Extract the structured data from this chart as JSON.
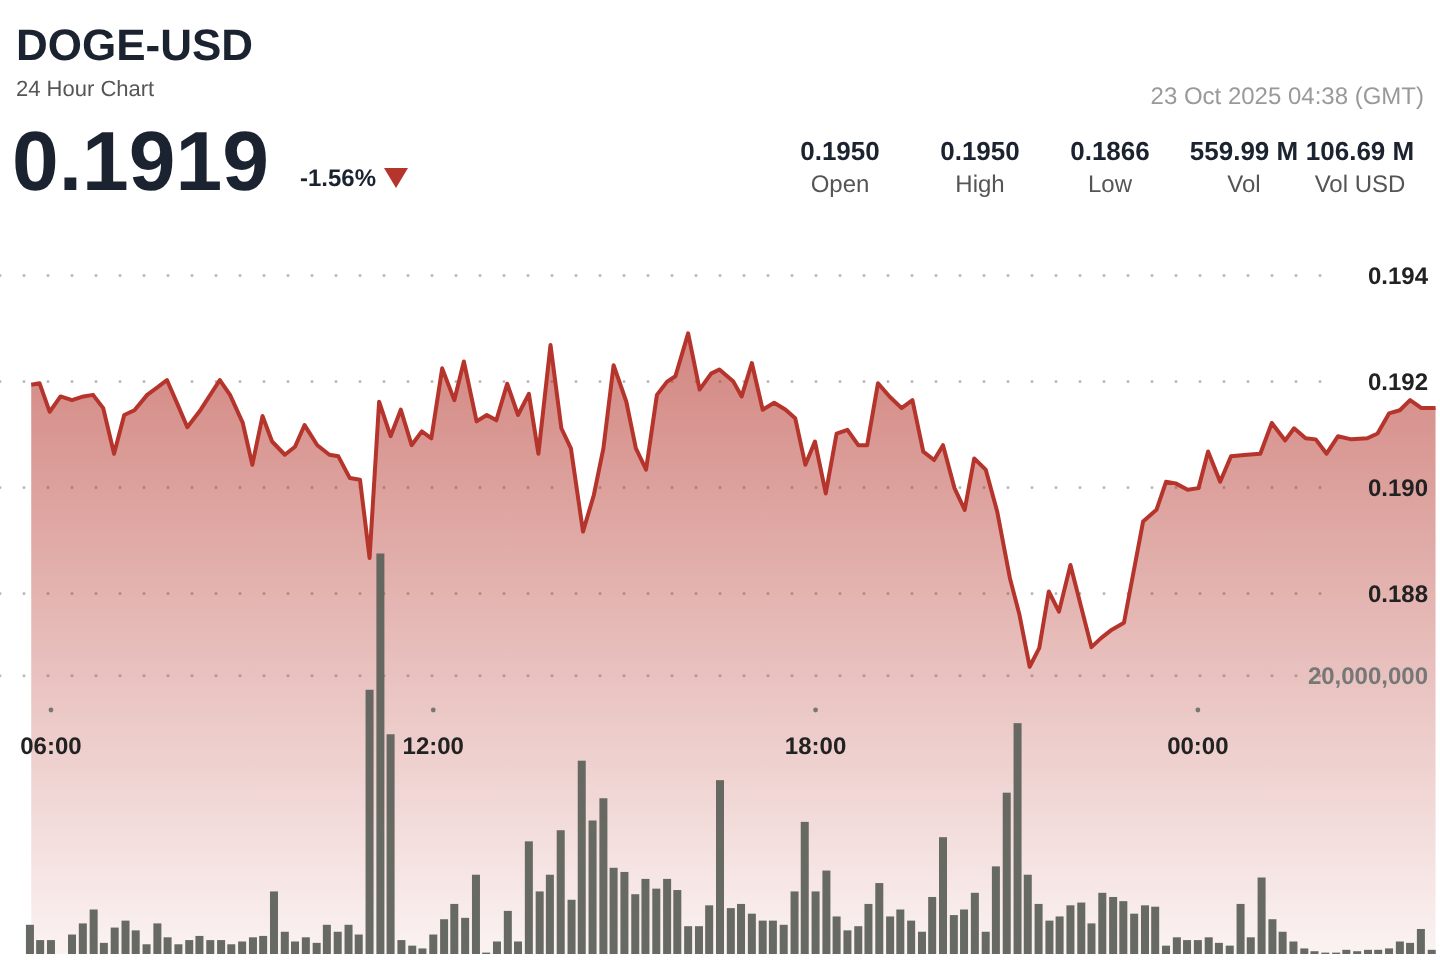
{
  "chart_data": {
    "type": "area",
    "title": "DOGE-USD",
    "subtitle": "24 Hour Chart",
    "annotations": [
      "0.1919",
      "-1.56%",
      "23 Oct 2025 04:38 (GMT)",
      "0.1950",
      "Open",
      "0.1950",
      "High",
      "0.1866",
      "Low",
      "559.99 M",
      "Vol",
      "106.69 M",
      "Vol USD"
    ],
    "xlim": [
      5.2,
      27.8
    ],
    "xticks": [
      {
        "value": 6,
        "label": "06:00"
      },
      {
        "value": 12,
        "label": "12:00"
      },
      {
        "value": 18,
        "label": "18:00"
      },
      {
        "value": 24,
        "label": "00:00"
      }
    ],
    "ylim": [
      0.1812,
      0.1992
    ],
    "yticks": [
      {
        "value": 0.188,
        "label": "0.188"
      },
      {
        "value": 0.19,
        "label": "0.190"
      },
      {
        "value": 0.192,
        "label": "0.192"
      },
      {
        "value": 0.194,
        "label": "0.194"
      }
    ],
    "y2lim": [
      0,
      68600000
    ],
    "y2ticks": [
      {
        "value": 20000000,
        "label": "20,000,000"
      }
    ],
    "grid": "y",
    "series": [
      {
        "color": "#b5352c",
        "x": [
          5.69,
          5.82,
          5.98,
          6.15,
          6.33,
          6.51,
          6.66,
          6.82,
          6.99,
          7.15,
          7.31,
          7.51,
          7.68,
          7.82,
          7.99,
          8.14,
          8.35,
          8.65,
          8.81,
          9.01,
          9.16,
          9.32,
          9.47,
          9.67,
          9.83,
          9.98,
          10.18,
          10.37,
          10.51,
          10.69,
          10.85,
          11.0,
          11.15,
          11.33,
          11.49,
          11.66,
          11.82,
          11.97,
          12.14,
          12.33,
          12.48,
          12.68,
          12.84,
          12.99,
          13.16,
          13.33,
          13.5,
          13.65,
          13.84,
          14.01,
          14.16,
          14.35,
          14.52,
          14.67,
          14.83,
          15.03,
          15.18,
          15.34,
          15.51,
          15.67,
          15.8,
          16.0,
          16.18,
          16.36,
          16.49,
          16.71,
          16.84,
          17.0,
          17.17,
          17.35,
          17.53,
          17.68,
          17.84,
          17.99,
          18.16,
          18.33,
          18.5,
          18.67,
          18.81,
          18.98,
          19.16,
          19.35,
          19.52,
          19.69,
          19.86,
          20.0,
          20.18,
          20.34,
          20.49,
          20.67,
          20.85,
          21.05,
          21.2,
          21.36,
          21.51,
          21.66,
          21.82,
          22.0,
          22.33,
          22.48,
          22.65,
          22.84,
          23.14,
          23.35,
          23.5,
          23.65,
          23.84,
          24.01,
          24.16,
          24.35,
          24.52,
          24.77,
          24.98,
          25.16,
          25.37,
          25.51,
          25.69,
          25.85,
          26.02,
          26.2,
          26.41,
          26.66,
          26.82,
          27.0,
          27.17,
          27.33,
          27.51,
          27.73
        ],
        "values": [
          0.19194,
          0.19197,
          0.19143,
          0.19172,
          0.19165,
          0.19172,
          0.19175,
          0.1915,
          0.19064,
          0.19137,
          0.19146,
          0.19175,
          0.1919,
          0.19203,
          0.19156,
          0.19114,
          0.19147,
          0.19203,
          0.19175,
          0.19122,
          0.19043,
          0.19135,
          0.19087,
          0.19062,
          0.19077,
          0.19118,
          0.1908,
          0.19062,
          0.19059,
          0.19018,
          0.19015,
          0.18867,
          0.19162,
          0.19097,
          0.19147,
          0.1908,
          0.19106,
          0.19093,
          0.19225,
          0.19165,
          0.19238,
          0.19125,
          0.19137,
          0.19127,
          0.19196,
          0.19137,
          0.19177,
          0.19064,
          0.19269,
          0.19112,
          0.19074,
          0.18917,
          0.18986,
          0.19074,
          0.19231,
          0.19162,
          0.19074,
          0.19034,
          0.19175,
          0.192,
          0.1921,
          0.19291,
          0.19185,
          0.19215,
          0.19223,
          0.192,
          0.19172,
          0.19235,
          0.19147,
          0.1916,
          0.19147,
          0.19131,
          0.19043,
          0.19087,
          0.18989,
          0.19102,
          0.19109,
          0.1908,
          0.1908,
          0.19197,
          0.19172,
          0.1915,
          0.19165,
          0.19068,
          0.19052,
          0.1908,
          0.18999,
          0.18958,
          0.19055,
          0.19034,
          0.18955,
          0.18829,
          0.1876,
          0.18662,
          0.18697,
          0.18804,
          0.18766,
          0.18854,
          0.18699,
          0.18716,
          0.18732,
          0.18745,
          0.18936,
          0.18958,
          0.19011,
          0.19008,
          0.18996,
          0.18999,
          0.19068,
          0.19011,
          0.19059,
          0.19062,
          0.19064,
          0.19122,
          0.19089,
          0.19112,
          0.19093,
          0.19091,
          0.19064,
          0.19097,
          0.19091,
          0.19093,
          0.19102,
          0.1914,
          0.19146,
          0.19165,
          0.1915,
          0.1915
        ]
      },
      {
        "type": "bar",
        "axis": "y2",
        "color": "#5f625c",
        "x": [
          5.67,
          5.83,
          6,
          6.17,
          6.33,
          6.5,
          6.67,
          6.83,
          7,
          7.17,
          7.33,
          7.5,
          7.67,
          7.83,
          8,
          8.17,
          8.33,
          8.5,
          8.67,
          8.83,
          9,
          9.17,
          9.33,
          9.5,
          9.67,
          9.83,
          10,
          10.17,
          10.33,
          10.5,
          10.67,
          10.83,
          11,
          11.17,
          11.33,
          11.5,
          11.67,
          11.83,
          12,
          12.17,
          12.33,
          12.5,
          12.67,
          12.83,
          13,
          13.17,
          13.33,
          13.5,
          13.67,
          13.83,
          14,
          14.17,
          14.33,
          14.5,
          14.67,
          14.83,
          15,
          15.17,
          15.33,
          15.5,
          15.67,
          15.83,
          16,
          16.17,
          16.33,
          16.5,
          16.67,
          16.83,
          17,
          17.17,
          17.33,
          17.5,
          17.67,
          17.83,
          18,
          18.17,
          18.33,
          18.5,
          18.67,
          18.83,
          19,
          19.17,
          19.33,
          19.5,
          19.67,
          19.83,
          20,
          20.17,
          20.33,
          20.5,
          20.67,
          20.83,
          21,
          21.17,
          21.33,
          21.5,
          21.67,
          21.83,
          22,
          22.17,
          22.33,
          22.5,
          22.67,
          22.83,
          23,
          23.17,
          23.33,
          23.5,
          23.67,
          23.83,
          24,
          24.17,
          24.33,
          24.5,
          24.67,
          24.83,
          25,
          25.17,
          25.33,
          25.5,
          25.67,
          25.83,
          26,
          26.17,
          26.33,
          26.5,
          26.67,
          26.83,
          27,
          27.17,
          27.33,
          27.5,
          27.67
        ],
        "values": [
          2100000,
          1000000,
          1000000,
          0,
          1400000,
          2200000,
          3200000,
          800000,
          1900000,
          2400000,
          1700000,
          700000,
          2200000,
          1200000,
          700000,
          1000000,
          1300000,
          1000000,
          1000000,
          700000,
          900000,
          1200000,
          1300000,
          4500000,
          1600000,
          900000,
          1200000,
          800000,
          2100000,
          1600000,
          2100000,
          1400000,
          19000000,
          28800000,
          15800000,
          1000000,
          600000,
          400000,
          1400000,
          2500000,
          3600000,
          2600000,
          5700000,
          100000,
          900000,
          3100000,
          900000,
          8100000,
          4500000,
          5700000,
          8900000,
          3900000,
          13900000,
          9600000,
          11200000,
          6200000,
          5900000,
          4300000,
          5400000,
          4700000,
          5400000,
          4600000,
          2000000,
          2000000,
          3500000,
          12500000,
          3300000,
          3600000,
          2900000,
          2400000,
          2400000,
          2100000,
          4500000,
          9500000,
          4500000,
          6000000,
          2700000,
          1700000,
          2000000,
          3600000,
          5100000,
          2700000,
          3200000,
          2400000,
          1600000,
          4100000,
          8400000,
          2800000,
          3200000,
          4400000,
          1600000,
          6300000,
          11600000,
          16600000,
          5700000,
          3600000,
          2400000,
          2700000,
          3500000,
          3700000,
          2200000,
          4400000,
          4100000,
          3800000,
          2900000,
          3500000,
          3400000,
          600000,
          1200000,
          1000000,
          1000000,
          1200000,
          800000,
          600000,
          3600000,
          1200000,
          5500000,
          2500000,
          1600000,
          900000,
          400000,
          200000,
          100000,
          100000,
          300000,
          200000,
          300000,
          300000,
          400000,
          900000,
          800000,
          1800000,
          300000
        ]
      }
    ]
  }
}
